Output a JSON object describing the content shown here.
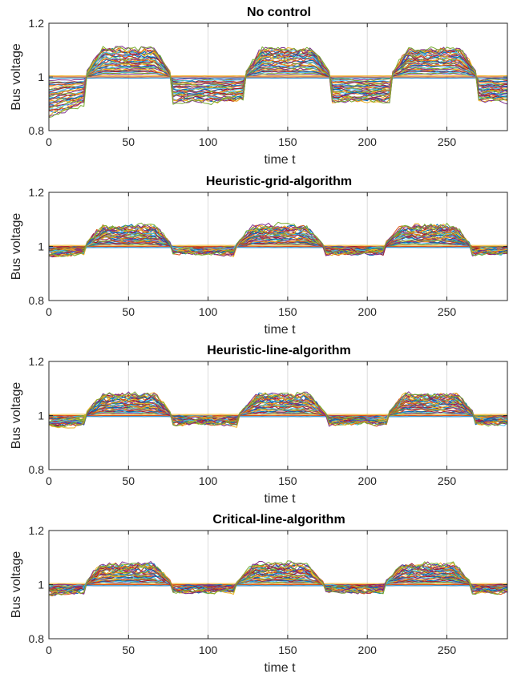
{
  "chart_data": [
    {
      "type": "line",
      "title": "No control",
      "xlabel": "time t",
      "ylabel": "Bus voltage",
      "xlim": [
        0,
        288
      ],
      "ylim": [
        0.8,
        1.2
      ],
      "xticks": [
        0,
        50,
        100,
        150,
        200,
        250
      ],
      "yticks": [
        0.8,
        1,
        1.2
      ],
      "xtick_labels": [
        "0",
        "50",
        "100",
        "150",
        "200",
        "250"
      ],
      "ytick_labels": [
        "0.8",
        "1",
        "1.2"
      ],
      "grid": "vertical",
      "series_count": 40,
      "profile": {
        "peak_centers": [
          50,
          150,
          242
        ],
        "peak_width": 28,
        "max_peak_deviation": 0.105,
        "night_min_deviation": -0.145,
        "day_min_deviation": -0.09
      }
    },
    {
      "type": "line",
      "title": "Heuristic-grid-algorithm",
      "xlabel": "time t",
      "ylabel": "Bus voltage",
      "xlim": [
        0,
        288
      ],
      "ylim": [
        0.8,
        1.2
      ],
      "xticks": [
        0,
        50,
        100,
        150,
        200,
        250
      ],
      "yticks": [
        0.8,
        1,
        1.2
      ],
      "xtick_labels": [
        "0",
        "50",
        "100",
        "150",
        "200",
        "250"
      ],
      "ytick_labels": [
        "0.8",
        "1",
        "1.2"
      ],
      "grid": "vertical",
      "series_count": 40,
      "profile": {
        "peak_centers": [
          50,
          145,
          238
        ],
        "peak_width": 28,
        "max_peak_deviation": 0.075,
        "night_min_deviation": -0.035,
        "day_min_deviation": -0.025
      }
    },
    {
      "type": "line",
      "title": "Heuristic-line-algorithm",
      "xlabel": "time t",
      "ylabel": "Bus voltage",
      "xlim": [
        0,
        288
      ],
      "ylim": [
        0.8,
        1.2
      ],
      "xticks": [
        0,
        50,
        100,
        150,
        200,
        250
      ],
      "yticks": [
        0.8,
        1,
        1.2
      ],
      "xtick_labels": [
        "0",
        "50",
        "100",
        "150",
        "200",
        "250"
      ],
      "ytick_labels": [
        "0.8",
        "1",
        "1.2"
      ],
      "grid": "vertical",
      "series_count": 40,
      "profile": {
        "peak_centers": [
          50,
          147,
          240
        ],
        "peak_width": 28,
        "max_peak_deviation": 0.078,
        "night_min_deviation": -0.04,
        "day_min_deviation": -0.03
      }
    },
    {
      "type": "line",
      "title": "Critical-line-algorithm",
      "xlabel": "time t",
      "ylabel": "Bus voltage",
      "xlim": [
        0,
        288
      ],
      "ylim": [
        0.8,
        1.2
      ],
      "xticks": [
        0,
        50,
        100,
        150,
        200,
        250
      ],
      "yticks": [
        0.8,
        1,
        1.2
      ],
      "xtick_labels": [
        "0",
        "50",
        "100",
        "150",
        "200",
        "250"
      ],
      "ytick_labels": [
        "0.8",
        "1",
        "1.2"
      ],
      "grid": "vertical",
      "series_count": 40,
      "profile": {
        "peak_centers": [
          50,
          145,
          238
        ],
        "peak_width": 28,
        "max_peak_deviation": 0.075,
        "night_min_deviation": -0.035,
        "day_min_deviation": -0.025
      }
    }
  ],
  "colors": {
    "series_palette": [
      "#0072BD",
      "#D95319",
      "#EDB120",
      "#7E2F8E",
      "#77AC30",
      "#4DBEEE",
      "#A2142F"
    ],
    "axis": "#262626",
    "grid": "#dcdcdc"
  }
}
